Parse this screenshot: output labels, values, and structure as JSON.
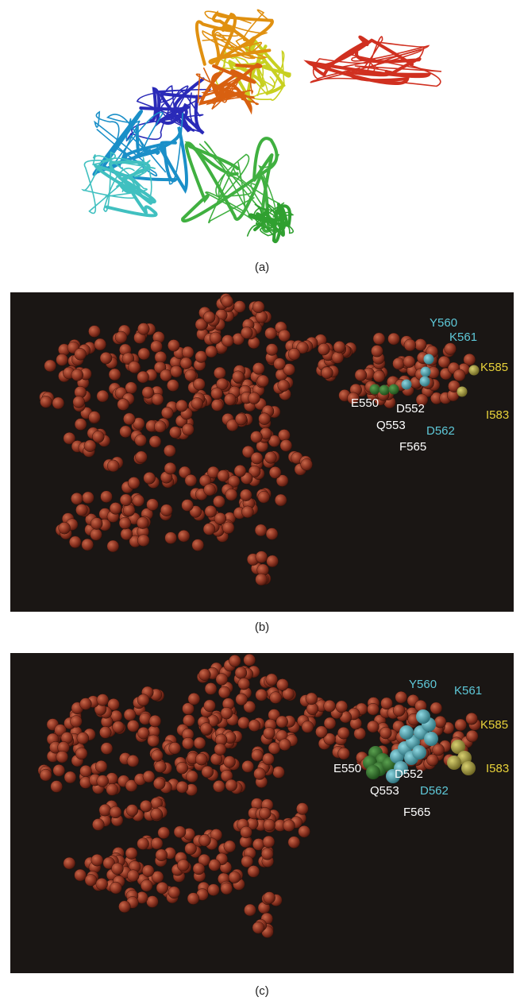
{
  "panels": [
    {
      "caption": "(a)"
    },
    {
      "caption": "(b)",
      "labels": [
        "Y560",
        "K561",
        "K585",
        "E550",
        "D552",
        "Q553",
        "D562",
        "I583",
        "F565"
      ]
    },
    {
      "caption": "(c)",
      "labels": [
        "Y560",
        "K561",
        "K585",
        "E550",
        "D552",
        "Q553",
        "D562",
        "I583",
        "F565"
      ]
    }
  ]
}
